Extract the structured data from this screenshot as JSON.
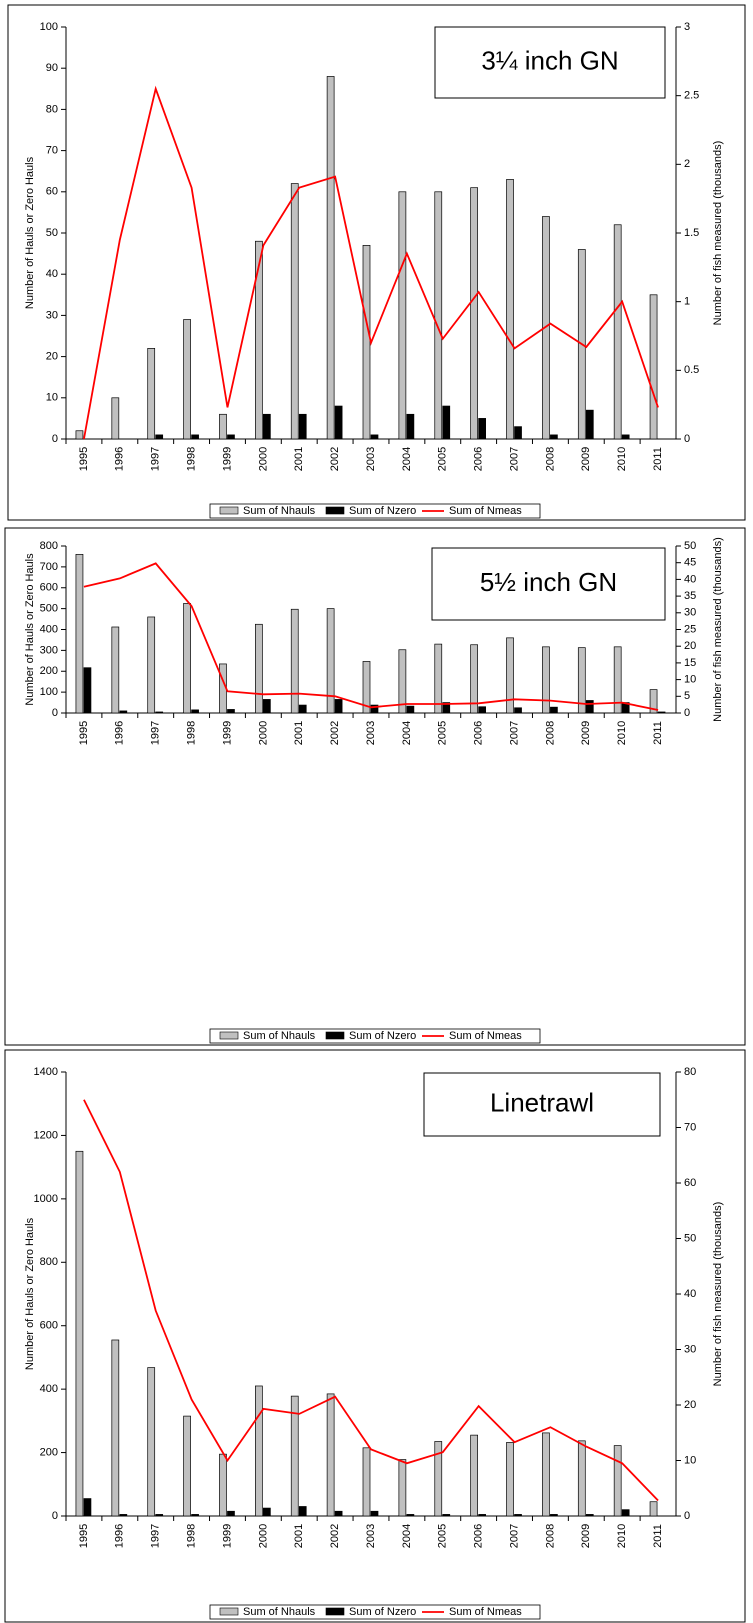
{
  "chart_data": [
    {
      "type": "bar",
      "title": "3¼ inch GN",
      "categories": [
        "1995",
        "1996",
        "1997",
        "1998",
        "1999",
        "2000",
        "2001",
        "2002",
        "2003",
        "2004",
        "2005",
        "2006",
        "2007",
        "2008",
        "2009",
        "2010",
        "2011"
      ],
      "y_label": "Number of Hauls or Zero Hauls",
      "y2_label": "Number of fish measured (thousands)",
      "ylim": [
        0,
        100
      ],
      "yticks": [
        0,
        10,
        20,
        30,
        40,
        50,
        60,
        70,
        80,
        90,
        100
      ],
      "y2lim": [
        0,
        3
      ],
      "y2ticks": [
        0,
        0.5,
        1,
        1.5,
        2,
        2.5,
        3
      ],
      "series": [
        {
          "name": "Sum of Nhauls",
          "color": "#c0c0c0",
          "values": [
            2,
            10,
            22,
            29,
            6,
            48,
            62,
            88,
            47,
            60,
            60,
            61,
            63,
            54,
            46,
            52,
            35
          ]
        },
        {
          "name": "Sum of Nzero",
          "color": "#000000",
          "values": [
            0,
            0,
            1,
            1,
            1,
            6,
            6,
            8,
            1,
            6,
            8,
            5,
            3,
            1,
            7,
            1,
            0
          ]
        },
        {
          "name": "Sum of Nmeas",
          "color": "#ff0000",
          "type": "line",
          "axis": "y2",
          "values": [
            0,
            1.45,
            2.55,
            1.83,
            0.23,
            1.41,
            1.83,
            1.91,
            0.7,
            1.35,
            0.73,
            1.07,
            0.66,
            0.84,
            0.67,
            1.0,
            0.23
          ]
        }
      ]
    },
    {
      "type": "bar",
      "title": "5½ inch GN",
      "categories": [
        "1995",
        "1996",
        "1997",
        "1998",
        "1999",
        "2000",
        "2001",
        "2002",
        "2003",
        "2004",
        "2005",
        "2006",
        "2007",
        "2008",
        "2009",
        "2010",
        "2011"
      ],
      "y_label": "Number of Hauls or Zero Hauls",
      "y2_label": "Number of fish measured (thousands)",
      "ylim": [
        0,
        800
      ],
      "yticks": [
        0,
        100,
        200,
        300,
        400,
        500,
        600,
        700,
        800
      ],
      "y2lim": [
        0,
        50
      ],
      "y2ticks": [
        0,
        5,
        10,
        15,
        20,
        25,
        30,
        35,
        40,
        45,
        50
      ],
      "series": [
        {
          "name": "Sum of Nhauls",
          "color": "#c0c0c0",
          "values": [
            760,
            412,
            460,
            525,
            235,
            425,
            497,
            500,
            247,
            303,
            330,
            327,
            360,
            317,
            313,
            317,
            112
          ]
        },
        {
          "name": "Sum of Nzero",
          "color": "#000000",
          "values": [
            217,
            10,
            5,
            15,
            17,
            65,
            38,
            65,
            38,
            33,
            50,
            30,
            25,
            28,
            60,
            50,
            5
          ]
        },
        {
          "name": "Sum of Nmeas",
          "color": "#ff0000",
          "type": "line",
          "axis": "y2",
          "values": [
            37.8,
            40.3,
            44.8,
            32,
            6.5,
            5.6,
            5.8,
            5,
            1.7,
            2.7,
            2.7,
            2.9,
            4.1,
            3.7,
            2.7,
            3.1,
            0.9
          ]
        }
      ]
    },
    {
      "type": "bar",
      "title": "Linetrawl",
      "categories": [
        "1995",
        "1996",
        "1997",
        "1998",
        "1999",
        "2000",
        "2001",
        "2002",
        "2003",
        "2004",
        "2005",
        "2006",
        "2007",
        "2008",
        "2009",
        "2010",
        "2011"
      ],
      "y_label": "Number of Hauls or Zero Hauls",
      "y2_label": "Number of fish measured (thousands)",
      "ylim": [
        0,
        1400
      ],
      "yticks": [
        0,
        200,
        400,
        600,
        800,
        1000,
        1200,
        1400
      ],
      "y2lim": [
        0,
        80
      ],
      "y2ticks": [
        0,
        10,
        20,
        30,
        40,
        50,
        60,
        70,
        80
      ],
      "series": [
        {
          "name": "Sum of Nhauls",
          "color": "#c0c0c0",
          "values": [
            1150,
            555,
            468,
            315,
            195,
            410,
            378,
            385,
            215,
            178,
            235,
            255,
            232,
            262,
            237,
            222,
            45
          ]
        },
        {
          "name": "Sum of Nzero",
          "color": "#000000",
          "values": [
            55,
            5,
            5,
            5,
            15,
            25,
            30,
            15,
            15,
            5,
            5,
            5,
            5,
            5,
            5,
            20,
            0
          ]
        },
        {
          "name": "Sum of Nmeas",
          "color": "#ff0000",
          "type": "line",
          "axis": "y2",
          "values": [
            75,
            62,
            37,
            21,
            10,
            19.3,
            18.4,
            21.5,
            12,
            9.5,
            11.5,
            19.8,
            13.3,
            16,
            12.5,
            9.5,
            2.8
          ]
        }
      ]
    }
  ]
}
